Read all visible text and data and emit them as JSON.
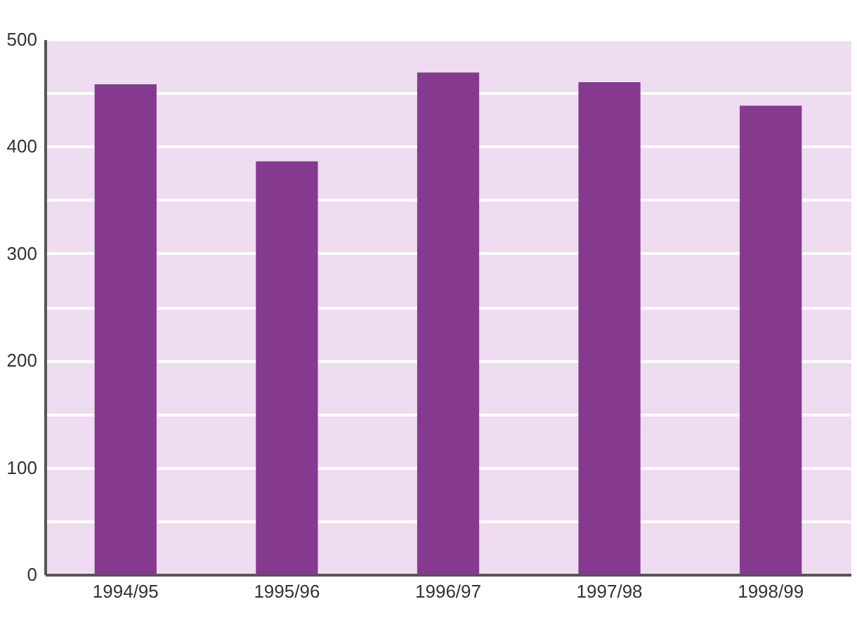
{
  "chart_data": {
    "type": "bar",
    "categories": [
      "1994/95",
      "1995/96",
      "1996/97",
      "1997/98",
      "1998/99"
    ],
    "values": [
      458,
      386,
      469,
      460,
      438
    ],
    "color": "#853a8f",
    "ylim": [
      0,
      500
    ],
    "yticks": [
      0,
      {
        "value": 50,
        "label": null
      },
      100,
      {
        "value": 150,
        "label": null
      },
      200,
      {
        "value": 250,
        "label": null
      },
      300,
      {
        "value": 350,
        "label": null
      },
      400,
      {
        "value": 450,
        "label": null
      },
      500
    ],
    "grid": "y"
  }
}
